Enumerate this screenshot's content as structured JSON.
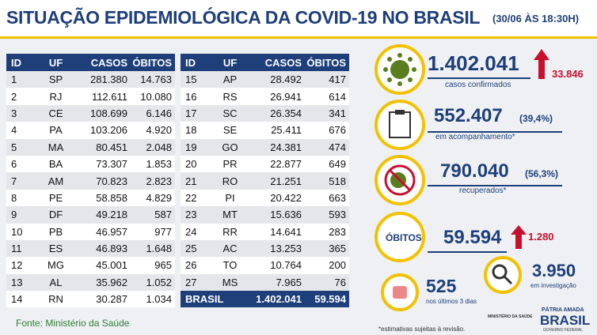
{
  "header": {
    "title": "SITUAÇÃO EPIDEMIOLÓGICA DA COVID-19 NO BRASIL",
    "date": "(30/06 ÀS 18:30H)"
  },
  "table": {
    "columns": [
      "ID",
      "UF",
      "CASOS",
      "ÓBITOS"
    ],
    "left_rows": [
      [
        "1",
        "SP",
        "281.380",
        "14.763"
      ],
      [
        "2",
        "RJ",
        "112.611",
        "10.080"
      ],
      [
        "3",
        "CE",
        "108.699",
        "6.146"
      ],
      [
        "4",
        "PA",
        "103.206",
        "4.920"
      ],
      [
        "5",
        "MA",
        "80.451",
        "2.048"
      ],
      [
        "6",
        "BA",
        "73.307",
        "1.853"
      ],
      [
        "7",
        "AM",
        "70.823",
        "2.823"
      ],
      [
        "8",
        "PE",
        "58.858",
        "4.829"
      ],
      [
        "9",
        "DF",
        "49.218",
        "587"
      ],
      [
        "10",
        "PB",
        "46.957",
        "977"
      ],
      [
        "11",
        "ES",
        "46.893",
        "1.648"
      ],
      [
        "12",
        "MG",
        "45.001",
        "965"
      ],
      [
        "13",
        "AL",
        "35.962",
        "1.052"
      ],
      [
        "14",
        "RN",
        "30.287",
        "1.034"
      ]
    ],
    "right_rows": [
      [
        "15",
        "AP",
        "28.492",
        "417"
      ],
      [
        "16",
        "RS",
        "26.941",
        "614"
      ],
      [
        "17",
        "SC",
        "26.354",
        "341"
      ],
      [
        "18",
        "SE",
        "25.411",
        "676"
      ],
      [
        "19",
        "GO",
        "24.381",
        "474"
      ],
      [
        "20",
        "PR",
        "22.877",
        "649"
      ],
      [
        "21",
        "RO",
        "21.251",
        "518"
      ],
      [
        "22",
        "PI",
        "20.422",
        "663"
      ],
      [
        "23",
        "MT",
        "15.636",
        "593"
      ],
      [
        "24",
        "RR",
        "14.641",
        "283"
      ],
      [
        "25",
        "AC",
        "13.253",
        "365"
      ],
      [
        "26",
        "TO",
        "10.764",
        "200"
      ],
      [
        "27",
        "MS",
        "7.965",
        "76"
      ]
    ],
    "total": {
      "label": "BRASIL",
      "cases": "1.402.041",
      "deaths": "59.594"
    }
  },
  "stats": {
    "confirmed": {
      "value": "1.402.041",
      "label": "casos confirmados",
      "increase": "33.846"
    },
    "monitoring": {
      "value": "552.407",
      "percent": "(39,4%)",
      "label": "em acompanhamento*"
    },
    "recovered": {
      "value": "790.040",
      "percent": "(56,3%)",
      "label": "recuperados*"
    },
    "deaths": {
      "badge": "ÓBITOS",
      "value": "59.594",
      "increase": "1.280"
    },
    "investigation": {
      "value": "3.950",
      "label": "em investigação"
    },
    "last_days": {
      "value": "525",
      "label": "nos últimos 3 dias"
    }
  },
  "footer": {
    "source": "Fonte: Ministério da Saúde",
    "note": "*estimativas sujeitas à revisão.",
    "ministry": "MINISTÉRIO DA SAÚDE",
    "brand_top": "PÁTRIA AMADA",
    "brand": "BRASIL",
    "brand_sub": "GOVERNO FEDERAL"
  }
}
